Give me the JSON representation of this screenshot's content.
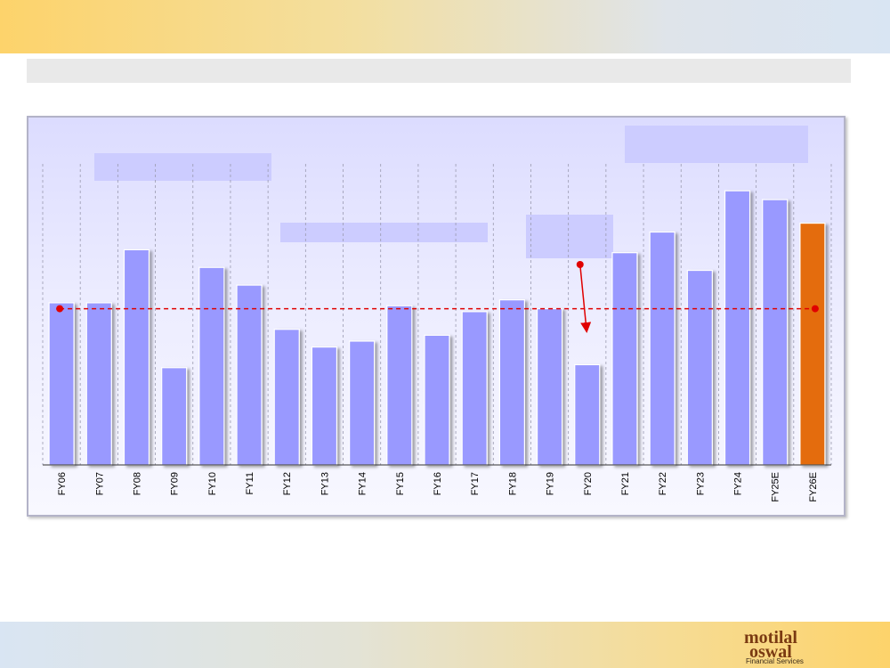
{
  "colors": {
    "bar": "#9999ff",
    "highlight_bar": "#e46c0a",
    "average_line": "#e00000",
    "arrow": "#e00000"
  },
  "logo": {
    "word1": "motilal",
    "word2": "oswal",
    "tagline": "Financial Services"
  },
  "chart_data": {
    "type": "bar",
    "categories": [
      "FY06",
      "FY07",
      "FY08",
      "FY09",
      "FY10",
      "FY11",
      "FY12",
      "FY13",
      "FY14",
      "FY15",
      "FY16",
      "FY17",
      "FY18",
      "FY19",
      "FY20",
      "FY21",
      "FY22",
      "FY23",
      "FY24",
      "FY25E",
      "FY26E"
    ],
    "values": [
      55,
      55,
      73,
      33,
      67,
      61,
      46,
      40,
      42,
      54,
      44,
      52,
      56,
      53,
      34,
      72,
      79,
      66,
      93,
      90,
      82
    ],
    "highlight_category": "FY26E",
    "average_value": 53,
    "ylim": [
      0,
      100
    ],
    "grid": "vertical dashed",
    "title": "",
    "xlabel": "",
    "ylabel": ""
  }
}
